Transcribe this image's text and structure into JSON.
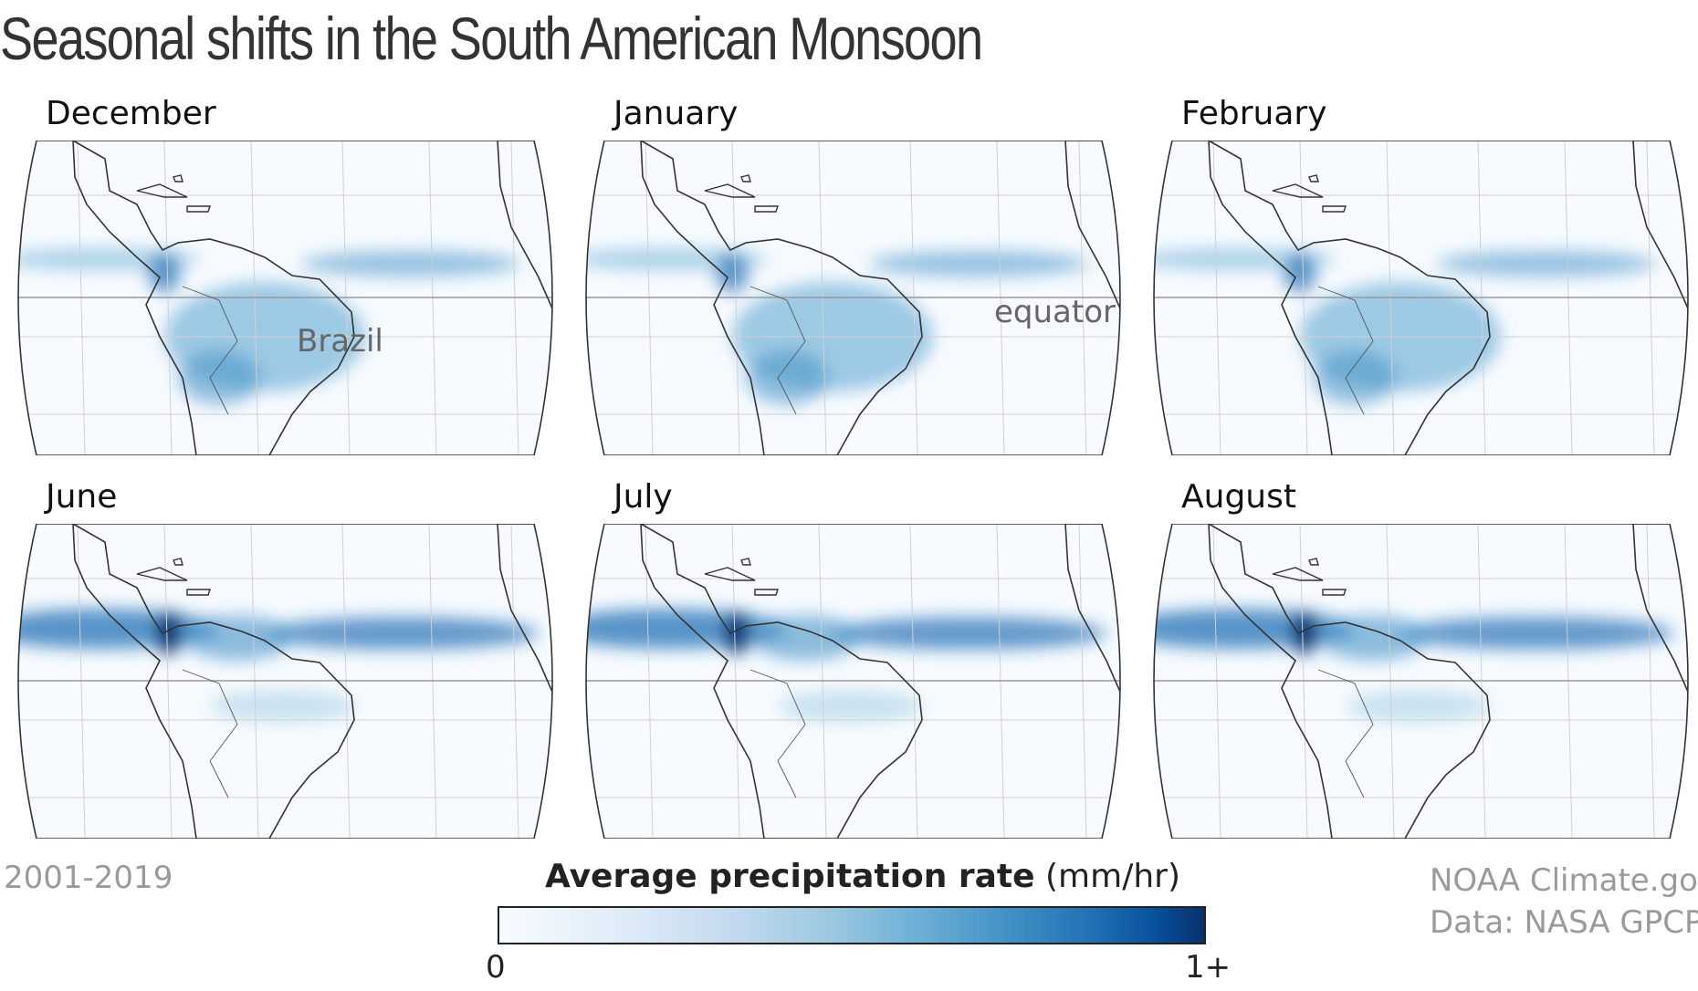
{
  "title": "Seasonal shifts in the South American Monsoon",
  "panels": [
    {
      "month": "December",
      "annotation": "Brazil",
      "pattern": "wet-south"
    },
    {
      "month": "January",
      "annotation": "equator",
      "pattern": "wet-south"
    },
    {
      "month": "February",
      "annotation": "",
      "pattern": "wet-south"
    },
    {
      "month": "June",
      "annotation": "",
      "pattern": "wet-north"
    },
    {
      "month": "July",
      "annotation": "",
      "pattern": "wet-north"
    },
    {
      "month": "August",
      "annotation": "",
      "pattern": "wet-north"
    }
  ],
  "legend": {
    "title_bold": "Average precipitation rate",
    "title_units": "(mm/hr)",
    "min_label": "0",
    "max_label": "1+",
    "color_low": "#f7fbff",
    "color_high": "#08306b"
  },
  "footer": {
    "period": "2001-2019",
    "credit": "NOAA Climate.gov",
    "source": "Data: NASA GPCP"
  }
}
